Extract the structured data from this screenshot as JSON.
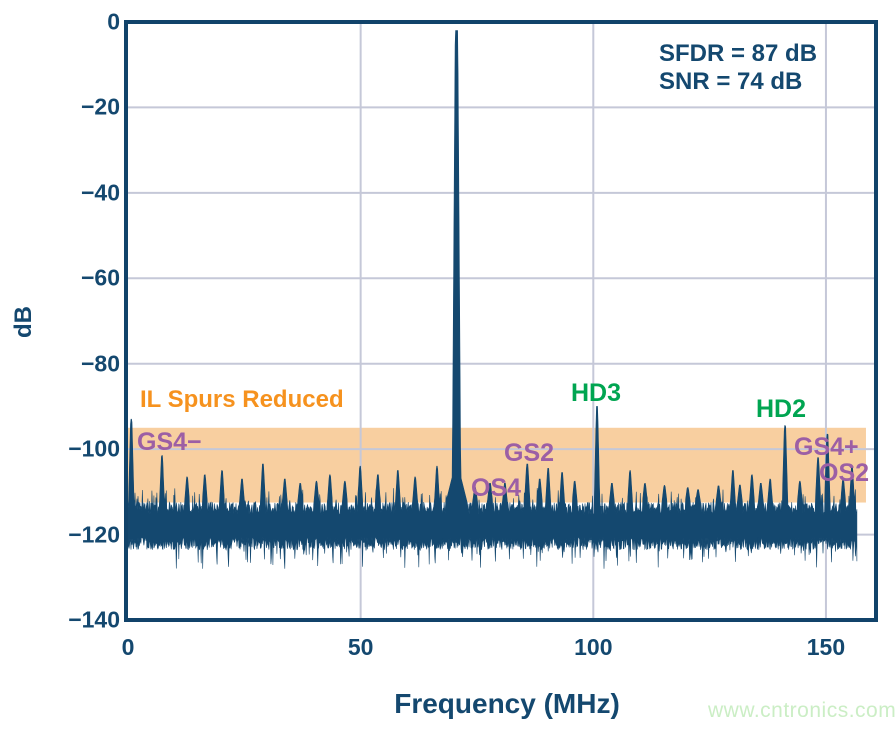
{
  "palette": {
    "navy": "#14486F",
    "frame": "#11436A",
    "grid": "#C5C8D8",
    "band": "#F8CFA0",
    "orange": "#F6921E",
    "purple": "#9C5FA5",
    "green": "#00A551",
    "watermark_green": "#CBEEC5",
    "background": "#FFFFFF"
  },
  "axes": {
    "x_label": "Frequency (MHz)",
    "y_label": "dB",
    "x_ticks": [
      "0",
      "50",
      "100",
      "150"
    ],
    "y_ticks": [
      "0",
      "−20",
      "−40",
      "−60",
      "−80",
      "−100",
      "−120",
      "−140"
    ]
  },
  "annotations": {
    "sfdr": "SFDR = 87 dB",
    "snr": "SNR = 74 dB",
    "watermark": "www.cntronics.com"
  },
  "chart_data": {
    "type": "line",
    "title": "",
    "xlabel": "Frequency (MHz)",
    "ylabel": "dB",
    "xlim": [
      0,
      161
    ],
    "ylim": [
      -140,
      0
    ],
    "xticks_mhz": [
      0,
      50,
      100,
      150
    ],
    "yticks_db": [
      0,
      -20,
      -40,
      -60,
      -80,
      -100,
      -120,
      -140
    ],
    "grid": "on",
    "trace_end_mhz": 156.7,
    "fundamental": {
      "freq_mhz": 70.6,
      "level_db": -2
    },
    "labeled_spurs": [
      {
        "label": "GS4−",
        "freq_mhz": 0.7,
        "level_db": -93,
        "color": "purple"
      },
      {
        "label": "OS4",
        "freq_mhz": 77.8,
        "level_db": -108,
        "color": "purple"
      },
      {
        "label": "GS2",
        "freq_mhz": 85.8,
        "level_db": -103.5,
        "color": "purple"
      },
      {
        "label": "HD3",
        "freq_mhz": 100.8,
        "level_db": -90,
        "color": "green"
      },
      {
        "label": "HD2",
        "freq_mhz": 141.2,
        "level_db": -94.5,
        "color": "green"
      },
      {
        "label": "GS4+",
        "freq_mhz": 150.3,
        "level_db": -96.5,
        "color": "purple"
      },
      {
        "label": "OS2",
        "freq_mhz": 148.3,
        "level_db": -102,
        "color": "purple"
      }
    ],
    "other_spurs": [
      [
        7.3,
        -101.5
      ],
      [
        12.7,
        -106.5
      ],
      [
        16.5,
        -106
      ],
      [
        20.2,
        -105
      ],
      [
        24.5,
        -107
      ],
      [
        29,
        -103.5
      ],
      [
        33.7,
        -107
      ],
      [
        37,
        -108
      ],
      [
        40.5,
        -107.5
      ],
      [
        43.4,
        -106
      ],
      [
        46.6,
        -107.5
      ],
      [
        49.9,
        -104
      ],
      [
        53.7,
        -106
      ],
      [
        58,
        -105
      ],
      [
        61.7,
        -106.5
      ],
      [
        66.4,
        -104
      ],
      [
        74.6,
        -109
      ],
      [
        81,
        -108
      ],
      [
        88.5,
        -107
      ],
      [
        90.3,
        -104.5
      ],
      [
        93.3,
        -105.5
      ],
      [
        96,
        -107.5
      ],
      [
        104,
        -108
      ],
      [
        107.9,
        -105
      ],
      [
        111.1,
        -108
      ],
      [
        115.3,
        -108.5
      ],
      [
        120.3,
        -109
      ],
      [
        122.5,
        -109.5
      ],
      [
        126.9,
        -108.6
      ],
      [
        130,
        -105
      ],
      [
        131.5,
        -108.4
      ],
      [
        134.1,
        -106
      ],
      [
        136,
        -108
      ],
      [
        138,
        -107
      ],
      [
        144.4,
        -107.5
      ],
      [
        153.7,
        -107
      ],
      [
        155.6,
        -104
      ]
    ],
    "noise_floor_db": {
      "top_envelope": -113,
      "bottom_envelope": -123,
      "mean": -118
    },
    "highlight_band": {
      "label": "IL Spurs Reduced",
      "from_db": -95,
      "to_db": -112.5,
      "from_mhz": 0,
      "to_mhz": 158.6,
      "color": "#F8CFA0"
    },
    "metrics": {
      "sfdr_db": 87,
      "snr_db": 74
    }
  }
}
